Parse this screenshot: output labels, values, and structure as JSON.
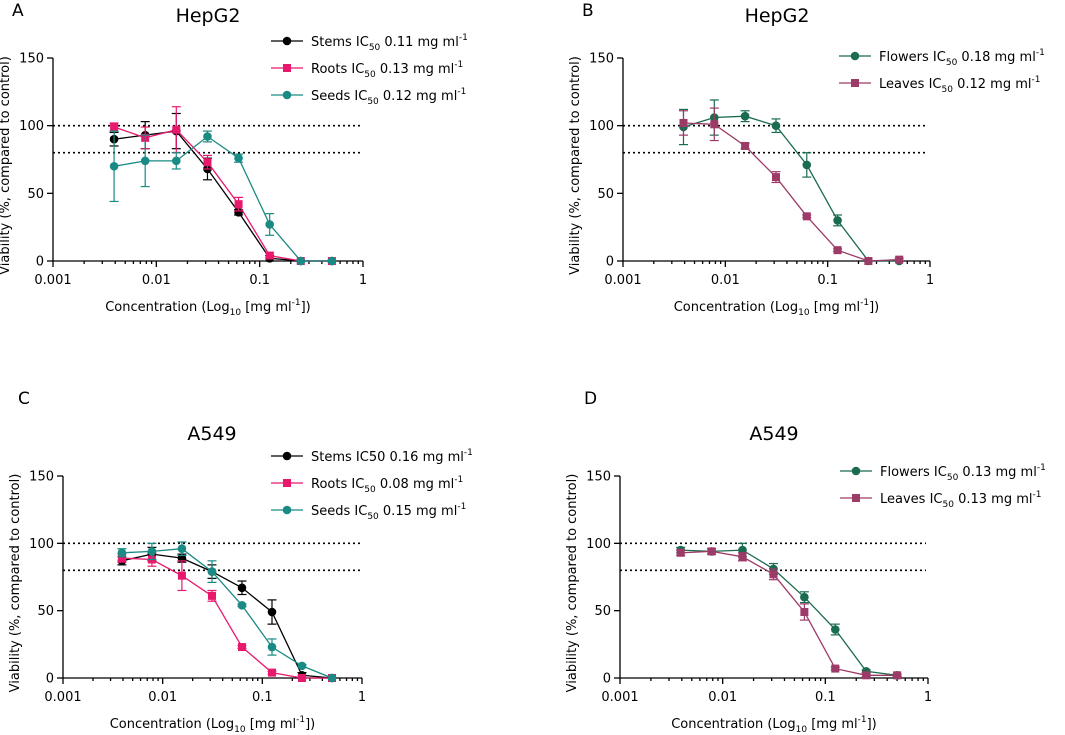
{
  "chart_data": [
    {
      "type": "line",
      "panel_label": "A",
      "title": "HepG2",
      "xlabel": {
        "pre": "Concentration (Log",
        "sub": "10",
        "post": " [mg ml",
        "sup": "-1",
        "end": "])"
      },
      "ylabel": "Viability (%, compared to control)",
      "xscale": "log",
      "xlim": [
        0.001,
        1
      ],
      "ylim": [
        0,
        150
      ],
      "xticks": [
        0.001,
        0.01,
        0.1,
        1
      ],
      "xtick_labels": [
        "0.001",
        "0.01",
        "0.1",
        "1"
      ],
      "yticks": [
        0,
        50,
        100,
        150
      ],
      "ytick_labels": [
        "0",
        "50",
        "100",
        "150"
      ],
      "reference_lines": [
        100,
        80
      ],
      "x": [
        0.0039,
        0.0078,
        0.0156,
        0.03125,
        0.0625,
        0.125,
        0.25,
        0.5
      ],
      "series": [
        {
          "name": "Stems",
          "legend": {
            "pre": "Stems IC",
            "sub": "50",
            "post": " 0.11 mg ml",
            "sup": "-1"
          },
          "color": "#000000",
          "marker": "circle",
          "values": [
            90,
            93,
            96,
            68,
            36,
            2,
            0,
            0
          ],
          "errors": [
            5,
            10,
            13,
            8,
            2,
            2,
            0,
            0
          ]
        },
        {
          "name": "Roots",
          "legend": {
            "pre": "Roots IC",
            "sub": "50",
            "post": " 0.13 mg ml",
            "sup": "-1"
          },
          "color": "#e8186d",
          "marker": "square",
          "values": [
            99,
            91,
            97,
            73,
            42,
            4,
            0,
            0
          ],
          "errors": [
            3,
            8,
            17,
            5,
            5,
            2,
            0,
            0
          ]
        },
        {
          "name": "Seeds",
          "legend": {
            "pre": "Seeds IC",
            "sub": "50",
            "post": " 0.12 mg ml",
            "sup": "-1"
          },
          "color": "#1a8a84",
          "marker": "circle",
          "values": [
            70,
            74,
            74,
            92,
            76,
            27,
            0,
            0
          ],
          "errors": [
            26,
            19,
            6,
            4,
            3,
            8,
            0,
            0
          ]
        }
      ]
    },
    {
      "type": "line",
      "panel_label": "B",
      "title": "HepG2",
      "xlabel": {
        "pre": "Concentration (Log",
        "sub": "10",
        "post": " [mg ml",
        "sup": "-1",
        "end": "])"
      },
      "ylabel": "Viability (%, compared to control)",
      "xscale": "log",
      "xlim": [
        0.001,
        1
      ],
      "ylim": [
        0,
        150
      ],
      "xticks": [
        0.001,
        0.01,
        0.1,
        1
      ],
      "xtick_labels": [
        "0.001",
        "0.01",
        "0.1",
        "1"
      ],
      "yticks": [
        0,
        50,
        100,
        150
      ],
      "ytick_labels": [
        "0",
        "50",
        "100",
        "150"
      ],
      "reference_lines": [
        100,
        80
      ],
      "x": [
        0.0039,
        0.0078,
        0.0156,
        0.03125,
        0.0625,
        0.125,
        0.25,
        0.5
      ],
      "series": [
        {
          "name": "Flowers",
          "legend": {
            "pre": "Flowers IC",
            "sub": "50",
            "post": " 0.18 mg ml",
            "sup": "-1"
          },
          "color": "#1b6b4f",
          "marker": "circle",
          "values": [
            99,
            106,
            107,
            100,
            71,
            30,
            0,
            0
          ],
          "errors": [
            13,
            13,
            4,
            5,
            9,
            4,
            0,
            0
          ]
        },
        {
          "name": "Leaves",
          "legend": {
            "pre": "Leaves IC",
            "sub": "50",
            "post": " 0.12 mg ml",
            "sup": "-1"
          },
          "color": "#9c3a68",
          "marker": "square",
          "values": [
            102,
            101,
            85,
            62,
            33,
            8,
            0,
            1
          ],
          "errors": [
            9,
            12,
            2,
            4,
            1,
            1,
            0,
            1
          ]
        }
      ]
    },
    {
      "type": "line",
      "panel_label": "C",
      "title": "A549",
      "xlabel": {
        "pre": "Concentration (Log",
        "sub": "10",
        "post": " [mg ml",
        "sup": "-1",
        "end": "])"
      },
      "ylabel": "Viability (%, compared to control)",
      "xscale": "log",
      "xlim": [
        0.001,
        1
      ],
      "ylim": [
        0,
        150
      ],
      "xticks": [
        0.001,
        0.01,
        0.1,
        1
      ],
      "xtick_labels": [
        "0.001",
        "0.01",
        "0.1",
        "1"
      ],
      "yticks": [
        0,
        50,
        100,
        150
      ],
      "ytick_labels": [
        "0",
        "50",
        "100",
        "150"
      ],
      "reference_lines": [
        100,
        80
      ],
      "x": [
        0.0039,
        0.0078,
        0.0156,
        0.03125,
        0.0625,
        0.125,
        0.25,
        0.5
      ],
      "series": [
        {
          "name": "Stems",
          "legend": {
            "pre": "Stems IC50 0.16 mg ml",
            "sub": "",
            "post": "",
            "sup": "-1"
          },
          "color": "#000000",
          "marker": "circle",
          "values": [
            87,
            92,
            89,
            79,
            67,
            49,
            2,
            0
          ],
          "errors": [
            3,
            5,
            3,
            5,
            5,
            9,
            2,
            0
          ]
        },
        {
          "name": "Roots",
          "legend": {
            "pre": "Roots IC",
            "sub": "50",
            "post": " 0.08 mg ml",
            "sup": "-1"
          },
          "color": "#e8186d",
          "marker": "square",
          "values": [
            89,
            88,
            76,
            61,
            23,
            4,
            0,
            0
          ],
          "errors": [
            3,
            5,
            11,
            4,
            1,
            1,
            0,
            0
          ]
        },
        {
          "name": "Seeds",
          "legend": {
            "pre": "Seeds IC",
            "sub": "50",
            "post": " 0.15 mg ml",
            "sup": "-1"
          },
          "color": "#1a8a84",
          "marker": "circle",
          "values": [
            93,
            94,
            96,
            79,
            54,
            23,
            9,
            0
          ],
          "errors": [
            3,
            6,
            5,
            8,
            1,
            6,
            1,
            0
          ]
        }
      ]
    },
    {
      "type": "line",
      "panel_label": "D",
      "title": "A549",
      "xlabel": {
        "pre": "Concentration (Log",
        "sub": "10",
        "post": " [mg ml",
        "sup": "-1",
        "end": "])"
      },
      "ylabel": "Viability (%, compared to control)",
      "xscale": "log",
      "xlim": [
        0.001,
        1
      ],
      "ylim": [
        0,
        150
      ],
      "xticks": [
        0.001,
        0.01,
        0.1,
        1
      ],
      "xtick_labels": [
        "0.001",
        "0.01",
        "0.1",
        "1"
      ],
      "yticks": [
        0,
        50,
        100,
        150
      ],
      "ytick_labels": [
        "0",
        "50",
        "100",
        "150"
      ],
      "reference_lines": [
        100,
        80
      ],
      "x": [
        0.0039,
        0.0078,
        0.0156,
        0.03125,
        0.0625,
        0.125,
        0.25,
        0.5
      ],
      "series": [
        {
          "name": "Flowers",
          "legend": {
            "pre": "Flowers IC",
            "sub": "50",
            "post": " 0.13 mg ml",
            "sup": "-1"
          },
          "color": "#1b6b4f",
          "marker": "circle",
          "values": [
            95,
            94,
            95,
            81,
            60,
            36,
            5,
            2
          ],
          "errors": [
            2,
            2,
            5,
            4,
            4,
            4,
            1,
            1
          ]
        },
        {
          "name": "Leaves",
          "legend": {
            "pre": "Leaves IC",
            "sub": "50",
            "post": " 0.13 mg ml",
            "sup": "-1"
          },
          "color": "#9c3a68",
          "marker": "square",
          "values": [
            93,
            94,
            90,
            77,
            49,
            7,
            2,
            2
          ],
          "errors": [
            2,
            2,
            3,
            4,
            6,
            1,
            1,
            1
          ]
        }
      ]
    }
  ]
}
